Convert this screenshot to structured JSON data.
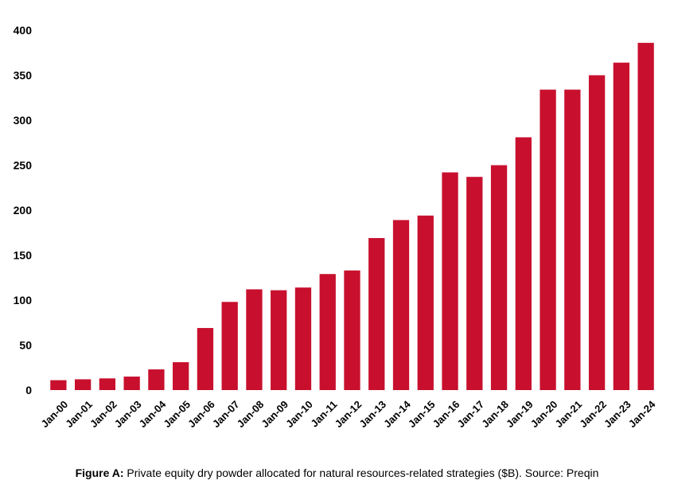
{
  "chart_data": {
    "type": "bar",
    "title": "",
    "xlabel": "",
    "ylabel": "",
    "ylim": [
      0,
      400
    ],
    "yticks": [
      0,
      50,
      100,
      150,
      200,
      250,
      300,
      350,
      400
    ],
    "grid": false,
    "bar_color": "#c8102e",
    "categories": [
      "Jan-00",
      "Jan-01",
      "Jan-02",
      "Jan-03",
      "Jan-04",
      "Jan-05",
      "Jan-06",
      "Jan-07",
      "Jan-08",
      "Jan-09",
      "Jan-10",
      "Jan-11",
      "Jan-12",
      "Jan-13",
      "Jan-14",
      "Jan-15",
      "Jan-16",
      "Jan-17",
      "Jan-18",
      "Jan-19",
      "Jan-20",
      "Jan-21",
      "Jan-22",
      "Jan-23",
      "Jan-24"
    ],
    "values": [
      11,
      12,
      13,
      15,
      23,
      31,
      69,
      98,
      112,
      111,
      114,
      129,
      133,
      169,
      189,
      194,
      242,
      237,
      250,
      281,
      334,
      334,
      350,
      364,
      386
    ]
  },
  "caption": {
    "label": "Figure A:",
    "text": " Private equity dry powder allocated for natural resources-related strategies ($B). Source: Preqin"
  }
}
